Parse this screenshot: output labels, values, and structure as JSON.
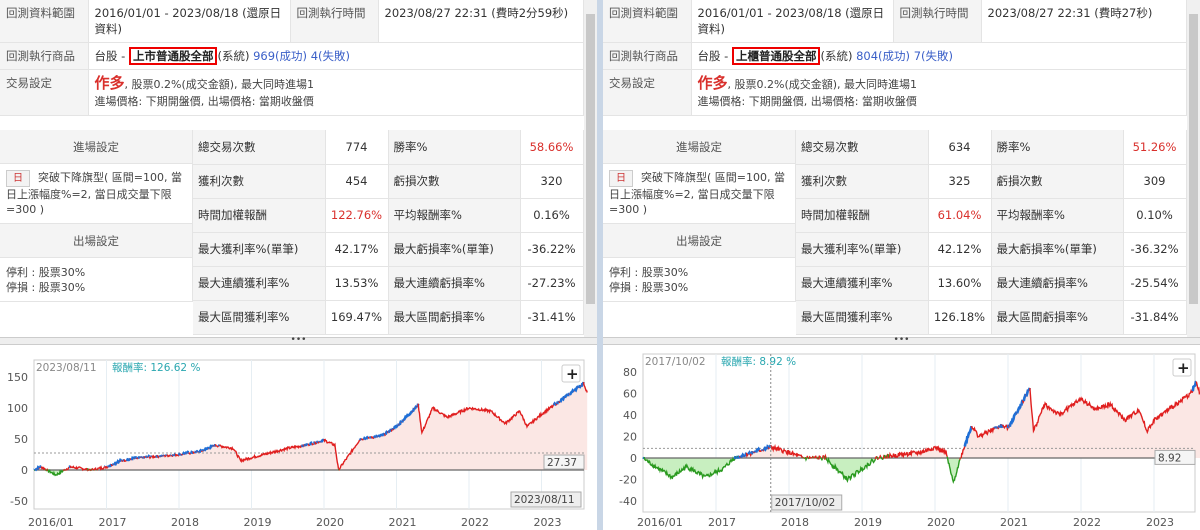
{
  "panels": [
    {
      "labels": {
        "range": "回測資料範圍",
        "exec_time": "回測執行時間",
        "product": "回測執行商品",
        "trade": "交易設定"
      },
      "range": "2016/01/01 - 2023/08/18 (還原日資料)",
      "exec_time": "2023/08/27 22:31 (費時2分59秒)",
      "product_market": "台股 - ",
      "product_name": "上市普通股全部",
      "product_suffix": "(系統)",
      "success": "969(成功)",
      "fail": "4(失敗)",
      "trade_dir": "作多",
      "trade_detail": ", 股票0.2%(成交金額), 最大同時進場1",
      "trade_price": "進場價格: 下期開盤價, 出場價格: 當期收盤價",
      "entry_title": "進場設定",
      "entry_badge": "日",
      "entry_text": "突破下降旗型( 區間=100, 當日上漲幅度%=2, 當日成交量下限=300 )",
      "exit_title": "出場設定",
      "exit_tp": "停利 : 股票30%",
      "exit_sl": "停損 : 股票30%",
      "stats": [
        [
          "總交易次數",
          "774",
          "勝率%",
          "58.66%"
        ],
        [
          "獲利次數",
          "454",
          "虧損次數",
          "320"
        ],
        [
          "時間加權報酬",
          "122.76%",
          "平均報酬率%",
          "0.16%"
        ],
        [
          "最大獲利率%(單筆)",
          "42.17%",
          "最大虧損率%(單筆)",
          "-36.22%"
        ],
        [
          "最大連續獲利率%",
          "13.53%",
          "最大連續虧損率%",
          "-27.23%"
        ],
        [
          "最大區間獲利率%",
          "169.47%",
          "最大區間虧損率%",
          "-31.41%"
        ]
      ],
      "splitter": "•••",
      "chart": {
        "tooltip_date": "2023/08/11",
        "tooltip_label": "報酬率: 126.62 %",
        "plus": "+",
        "ref_value": "27.37",
        "cursor_date": "2023/08/11",
        "yticks": [
          "150",
          "100",
          "50",
          "0",
          "-50"
        ],
        "xticks": [
          "2016/01",
          "2017",
          "2018",
          "2019",
          "2020",
          "2021",
          "2022",
          "2023"
        ]
      }
    },
    {
      "labels": {
        "range": "回測資料範圍",
        "exec_time": "回測執行時間",
        "product": "回測執行商品",
        "trade": "交易設定"
      },
      "range": "2016/01/01 - 2023/08/18 (還原日資料)",
      "exec_time": "2023/08/27 22:31 (費時27秒)",
      "product_market": "台股 - ",
      "product_name": "上櫃普通股全部",
      "product_suffix": "(系統)",
      "success": "804(成功)",
      "fail": "7(失敗)",
      "trade_dir": "作多",
      "trade_detail": ", 股票0.2%(成交金額), 最大同時進場1",
      "trade_price": "進場價格: 下期開盤價, 出場價格: 當期收盤價",
      "entry_title": "進場設定",
      "entry_badge": "日",
      "entry_text": "突破下降旗型( 區間=100, 當日上漲幅度%=2, 當日成交量下限=300 )",
      "exit_title": "出場設定",
      "exit_tp": "停利 : 股票30%",
      "exit_sl": "停損 : 股票30%",
      "stats": [
        [
          "總交易次數",
          "634",
          "勝率%",
          "51.26%"
        ],
        [
          "獲利次數",
          "325",
          "虧損次數",
          "309"
        ],
        [
          "時間加權報酬",
          "61.04%",
          "平均報酬率%",
          "0.10%"
        ],
        [
          "最大獲利率%(單筆)",
          "42.12%",
          "最大虧損率%(單筆)",
          "-36.32%"
        ],
        [
          "最大連續獲利率%",
          "13.60%",
          "最大連續虧損率%",
          "-25.54%"
        ],
        [
          "最大區間獲利率%",
          "126.18%",
          "最大區間虧損率%",
          "-31.84%"
        ]
      ],
      "splitter": "•••",
      "chart": {
        "tooltip_date": "2017/10/02",
        "tooltip_label": "報酬率: 8.92 %",
        "plus": "+",
        "ref_value": "8.92",
        "cursor_date": "2017/10/02",
        "yticks": [
          "80",
          "60",
          "40",
          "20",
          "0",
          "-20",
          "-40"
        ],
        "xticks": [
          "2016/01",
          "2017",
          "2018",
          "2019",
          "2020",
          "2021",
          "2022",
          "2023"
        ]
      }
    }
  ],
  "colors": {
    "up": "#e01f1f",
    "new_high": "#1f6fd6",
    "below": "#2a9a1f",
    "fill_pos": "#fbe7e4",
    "fill_neg": "#c8efc0",
    "accent_red": "#d9302c",
    "link": "#3a5fc8"
  },
  "chart_data": [
    {
      "type": "area",
      "ylabel": "",
      "ylim": [
        -60,
        170
      ],
      "x": [
        2016.0,
        2016.1,
        2016.3,
        2016.5,
        2016.8,
        2017.0,
        2017.2,
        2017.5,
        2018.0,
        2018.3,
        2018.5,
        2018.75,
        2018.85,
        2019.0,
        2019.5,
        2019.75,
        2020.0,
        2020.15,
        2020.2,
        2020.5,
        2020.8,
        2021.0,
        2021.3,
        2021.35,
        2021.5,
        2021.7,
        2022.0,
        2022.3,
        2022.5,
        2022.7,
        2022.8,
        2023.0,
        2023.3,
        2023.58,
        2023.63
      ],
      "values": [
        0,
        5,
        -8,
        5,
        0,
        5,
        15,
        20,
        25,
        30,
        40,
        35,
        15,
        20,
        35,
        40,
        48,
        40,
        0,
        50,
        55,
        70,
        105,
        60,
        100,
        85,
        100,
        95,
        75,
        95,
        70,
        90,
        115,
        140,
        125
      ],
      "reference_line": 27.37
    },
    {
      "type": "area",
      "ylabel": "",
      "ylim": [
        -45,
        90
      ],
      "x": [
        2016.0,
        2016.1,
        2016.4,
        2016.6,
        2016.85,
        2017.1,
        2017.25,
        2017.5,
        2017.75,
        2018.0,
        2018.2,
        2018.5,
        2018.8,
        2019.0,
        2019.2,
        2019.5,
        2019.8,
        2020.0,
        2020.15,
        2020.25,
        2020.35,
        2020.5,
        2020.6,
        2020.9,
        2021.0,
        2021.3,
        2021.35,
        2021.5,
        2021.7,
        2022.0,
        2022.2,
        2022.4,
        2022.6,
        2022.8,
        2022.9,
        2023.0,
        2023.3,
        2023.5,
        2023.58,
        2023.63
      ],
      "values": [
        0,
        -5,
        -18,
        -8,
        -18,
        -10,
        0,
        5,
        10,
        5,
        0,
        0,
        -20,
        -10,
        0,
        3,
        5,
        10,
        5,
        -23,
        0,
        30,
        20,
        30,
        28,
        65,
        25,
        50,
        40,
        55,
        45,
        50,
        35,
        45,
        25,
        35,
        50,
        60,
        70,
        60
      ],
      "reference_line": 8.92
    }
  ]
}
